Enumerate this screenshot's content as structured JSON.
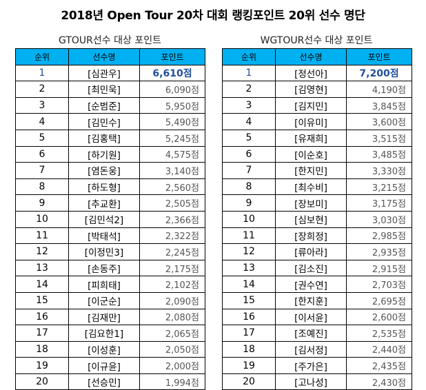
{
  "title": "2018년 Open Tour 20차 대회 랭킹포인트 20위 선수 명단",
  "left": {
    "subtitle": "GTOUR선수 대상 포인트",
    "headers": [
      "순위",
      "선수명",
      "포인트"
    ],
    "rows": [
      {
        "rank": "1",
        "name": "[심관우]",
        "points": "6,610점"
      },
      {
        "rank": "2",
        "name": "[최민욱]",
        "points": "6,090점"
      },
      {
        "rank": "3",
        "name": "[순범준]",
        "points": "5,950점"
      },
      {
        "rank": "4",
        "name": "[김민수]",
        "points": "5,490점"
      },
      {
        "rank": "5",
        "name": "[김홍택]",
        "points": "5,245점"
      },
      {
        "rank": "6",
        "name": "[하기원]",
        "points": "4,575점"
      },
      {
        "rank": "7",
        "name": "[염돈웅]",
        "points": "3,140점"
      },
      {
        "rank": "8",
        "name": "[하도형]",
        "points": "2,560점"
      },
      {
        "rank": "9",
        "name": "[추교환]",
        "points": "2,505점"
      },
      {
        "rank": "10",
        "name": "[김민석2]",
        "points": "2,366점"
      },
      {
        "rank": "11",
        "name": "[박태석]",
        "points": "2,322점"
      },
      {
        "rank": "12",
        "name": "[이정민3]",
        "points": "2,245점"
      },
      {
        "rank": "13",
        "name": "[손동주]",
        "points": "2,175점"
      },
      {
        "rank": "14",
        "name": "[피희태]",
        "points": "2,102점"
      },
      {
        "rank": "15",
        "name": "[이군순]",
        "points": "2,090점"
      },
      {
        "rank": "16",
        "name": "[김재만]",
        "points": "2,080점"
      },
      {
        "rank": "17",
        "name": "[김요한1]",
        "points": "2,065점"
      },
      {
        "rank": "18",
        "name": "[이성훈]",
        "points": "2,050점"
      },
      {
        "rank": "19",
        "name": "[이규윤]",
        "points": "2,000점"
      },
      {
        "rank": "20",
        "name": "[선승민]",
        "points": "1,994점"
      }
    ]
  },
  "right": {
    "subtitle": "WGTOUR선수 대상 포인트",
    "headers": [
      "순위",
      "선수명",
      "포인트"
    ],
    "rows": [
      {
        "rank": "1",
        "name": "[정선아]",
        "points": "7,200점"
      },
      {
        "rank": "2",
        "name": "[김영현]",
        "points": "4,190점"
      },
      {
        "rank": "3",
        "name": "[김지민]",
        "points": "3,845점"
      },
      {
        "rank": "4",
        "name": "[이유미]",
        "points": "3,600점"
      },
      {
        "rank": "5",
        "name": "[유재희]",
        "points": "3,515점"
      },
      {
        "rank": "6",
        "name": "[이순호]",
        "points": "3,485점"
      },
      {
        "rank": "7",
        "name": "[한지민]",
        "points": "3,330점"
      },
      {
        "rank": "8",
        "name": "[최수비]",
        "points": "3,215점"
      },
      {
        "rank": "9",
        "name": "[장보미]",
        "points": "3,175점"
      },
      {
        "rank": "10",
        "name": "[심보현]",
        "points": "3,030점"
      },
      {
        "rank": "11",
        "name": "[장희정]",
        "points": "2,985점"
      },
      {
        "rank": "12",
        "name": "[류아라]",
        "points": "2,935점"
      },
      {
        "rank": "13",
        "name": "[김소진]",
        "points": "2,915점"
      },
      {
        "rank": "14",
        "name": "[권수연]",
        "points": "2,703점"
      },
      {
        "rank": "15",
        "name": "[한지훈]",
        "points": "2,695점"
      },
      {
        "rank": "16",
        "name": "[이서윤]",
        "points": "2,600점"
      },
      {
        "rank": "17",
        "name": "[조예진]",
        "points": "2,535점"
      },
      {
        "rank": "18",
        "name": "[김서정]",
        "points": "2,440점"
      },
      {
        "rank": "19",
        "name": "[주가은]",
        "points": "2,435점"
      },
      {
        "rank": "20",
        "name": "[고나성]",
        "points": "2,430점"
      }
    ]
  },
  "colors": {
    "header_bg": "#00b0f0",
    "highlight": "#1f4e9c"
  }
}
